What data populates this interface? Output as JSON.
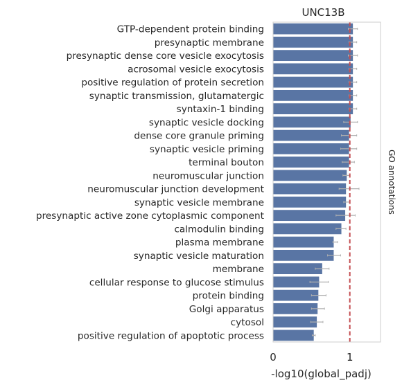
{
  "chart_data": {
    "type": "bar",
    "orientation": "horizontal",
    "title": "UNC13B",
    "xlabel": "-log10(global_padj)",
    "ylabel_right": "GO annotations",
    "xlim": [
      0,
      1.4
    ],
    "xticks": [
      0,
      1
    ],
    "grid": false,
    "reference_line": {
      "x": 1.0,
      "style": "dashed",
      "color": "#c44e52"
    },
    "bar_color": "#5975a4",
    "error_bar_color": "#b0b0b0",
    "categories": [
      "GTP-dependent protein binding",
      "presynaptic membrane",
      "presynaptic dense core vesicle exocytosis",
      "acrosomal vesicle exocytosis",
      "positive regulation of protein secretion",
      "synaptic transmission, glutamatergic",
      "syntaxin-1 binding",
      "synaptic vesicle docking",
      "dense core granule priming",
      "synaptic vesicle priming",
      "terminal bouton",
      "neuromuscular junction",
      "neuromuscular junction development",
      "synaptic vesicle membrane",
      "presynaptic active zone cytoplasmic component",
      "calmodulin binding",
      "plasma membrane",
      "synaptic vesicle maturation",
      "membrane",
      "cellular response to glucose stimulus",
      "protein binding",
      "Golgi apparatus",
      "cytosol",
      "positive regulation of apoptotic process"
    ],
    "values": [
      1.04,
      1.04,
      1.04,
      1.04,
      1.04,
      1.04,
      1.04,
      1.01,
      0.99,
      0.99,
      0.99,
      0.96,
      0.95,
      0.95,
      0.94,
      0.89,
      0.79,
      0.79,
      0.64,
      0.6,
      0.59,
      0.58,
      0.57,
      0.53
    ],
    "errors": [
      [
        0.98,
        1.1
      ],
      [
        0.99,
        1.09
      ],
      [
        0.98,
        1.1
      ],
      [
        0.99,
        1.09
      ],
      [
        0.99,
        1.09
      ],
      [
        0.99,
        1.09
      ],
      [
        0.99,
        1.09
      ],
      [
        0.92,
        1.1
      ],
      [
        0.89,
        1.09
      ],
      [
        0.88,
        1.09
      ],
      [
        0.9,
        1.06
      ],
      [
        0.91,
        1.0
      ],
      [
        0.86,
        1.12
      ],
      [
        0.92,
        1.0
      ],
      [
        0.82,
        1.07
      ],
      [
        0.82,
        0.95
      ],
      [
        0.78,
        0.84
      ],
      [
        0.71,
        0.88
      ],
      [
        0.55,
        0.73
      ],
      [
        0.48,
        0.72
      ],
      [
        0.5,
        0.69
      ],
      [
        0.5,
        0.67
      ],
      [
        0.49,
        0.65
      ],
      [
        0.51,
        0.55
      ]
    ]
  }
}
